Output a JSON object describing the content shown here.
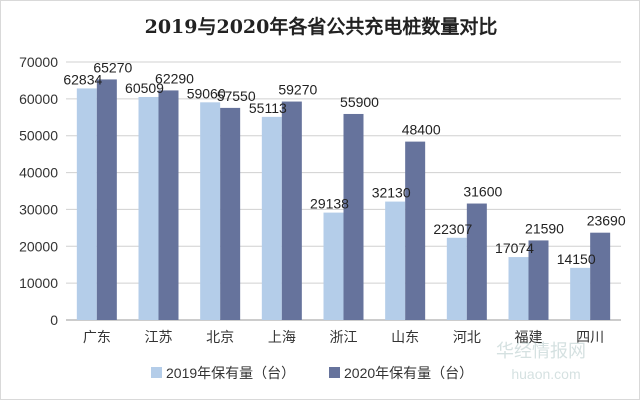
{
  "chart_data": {
    "type": "bar",
    "title": "2019与2020年各省公共充电桩数量对比",
    "categories": [
      "广东",
      "江苏",
      "北京",
      "上海",
      "浙江",
      "山东",
      "河北",
      "福建",
      "四川"
    ],
    "series": [
      {
        "name": "2019年保有量（台）",
        "color": "#b4cde9",
        "values": [
          62834,
          60509,
          59060,
          55113,
          29138,
          32130,
          22307,
          17074,
          14150
        ]
      },
      {
        "name": "2020年保有量（台）",
        "color": "#66739c",
        "values": [
          65270,
          62290,
          57550,
          59270,
          55900,
          48400,
          31600,
          21590,
          23690
        ]
      }
    ],
    "ylim": [
      0,
      70000
    ],
    "yticks": [
      "0",
      "10000",
      "20000",
      "30000",
      "40000",
      "50000",
      "60000",
      "70000"
    ],
    "grid": true,
    "legend": "bottom",
    "data_labels": true
  },
  "watermark": {
    "name": "华经情报网",
    "url": "huaon.com"
  }
}
